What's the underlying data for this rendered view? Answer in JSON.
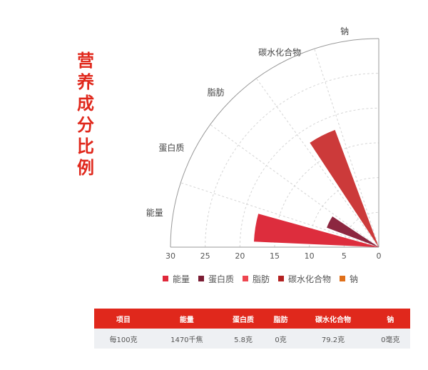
{
  "side_title": [
    "营",
    "养",
    "成",
    "分",
    "比",
    "例"
  ],
  "chart_data": {
    "type": "polar-bar",
    "categories": [
      "能量",
      "蛋白质",
      "脂肪",
      "碳水化合物",
      "钠"
    ],
    "values": [
      18,
      8,
      0,
      18,
      0
    ],
    "rlim": [
      0,
      30
    ],
    "r_ticks": [
      "30",
      "25",
      "20",
      "15",
      "10",
      "5",
      "0"
    ],
    "colors": [
      "#dd2d3d",
      "#8c2740",
      "#ef4a4f",
      "#cc3a3a",
      "#de6a1e"
    ],
    "legend": [
      "能量",
      "蛋白质",
      "脂肪",
      "碳水化合物",
      "钠"
    ],
    "legend_colors": [
      "#e0283a",
      "#7b1c33",
      "#ee4650",
      "#b32020",
      "#e0701a"
    ],
    "grid": true,
    "legend_position": "bottom"
  },
  "table": {
    "headers": [
      "项目",
      "能量",
      "蛋白质",
      "脂肪",
      "碳水化合物",
      "钠"
    ],
    "rows": [
      [
        "每100克",
        "1470千焦",
        "5.8克",
        "0克",
        "79.2克",
        "0毫克"
      ]
    ]
  }
}
